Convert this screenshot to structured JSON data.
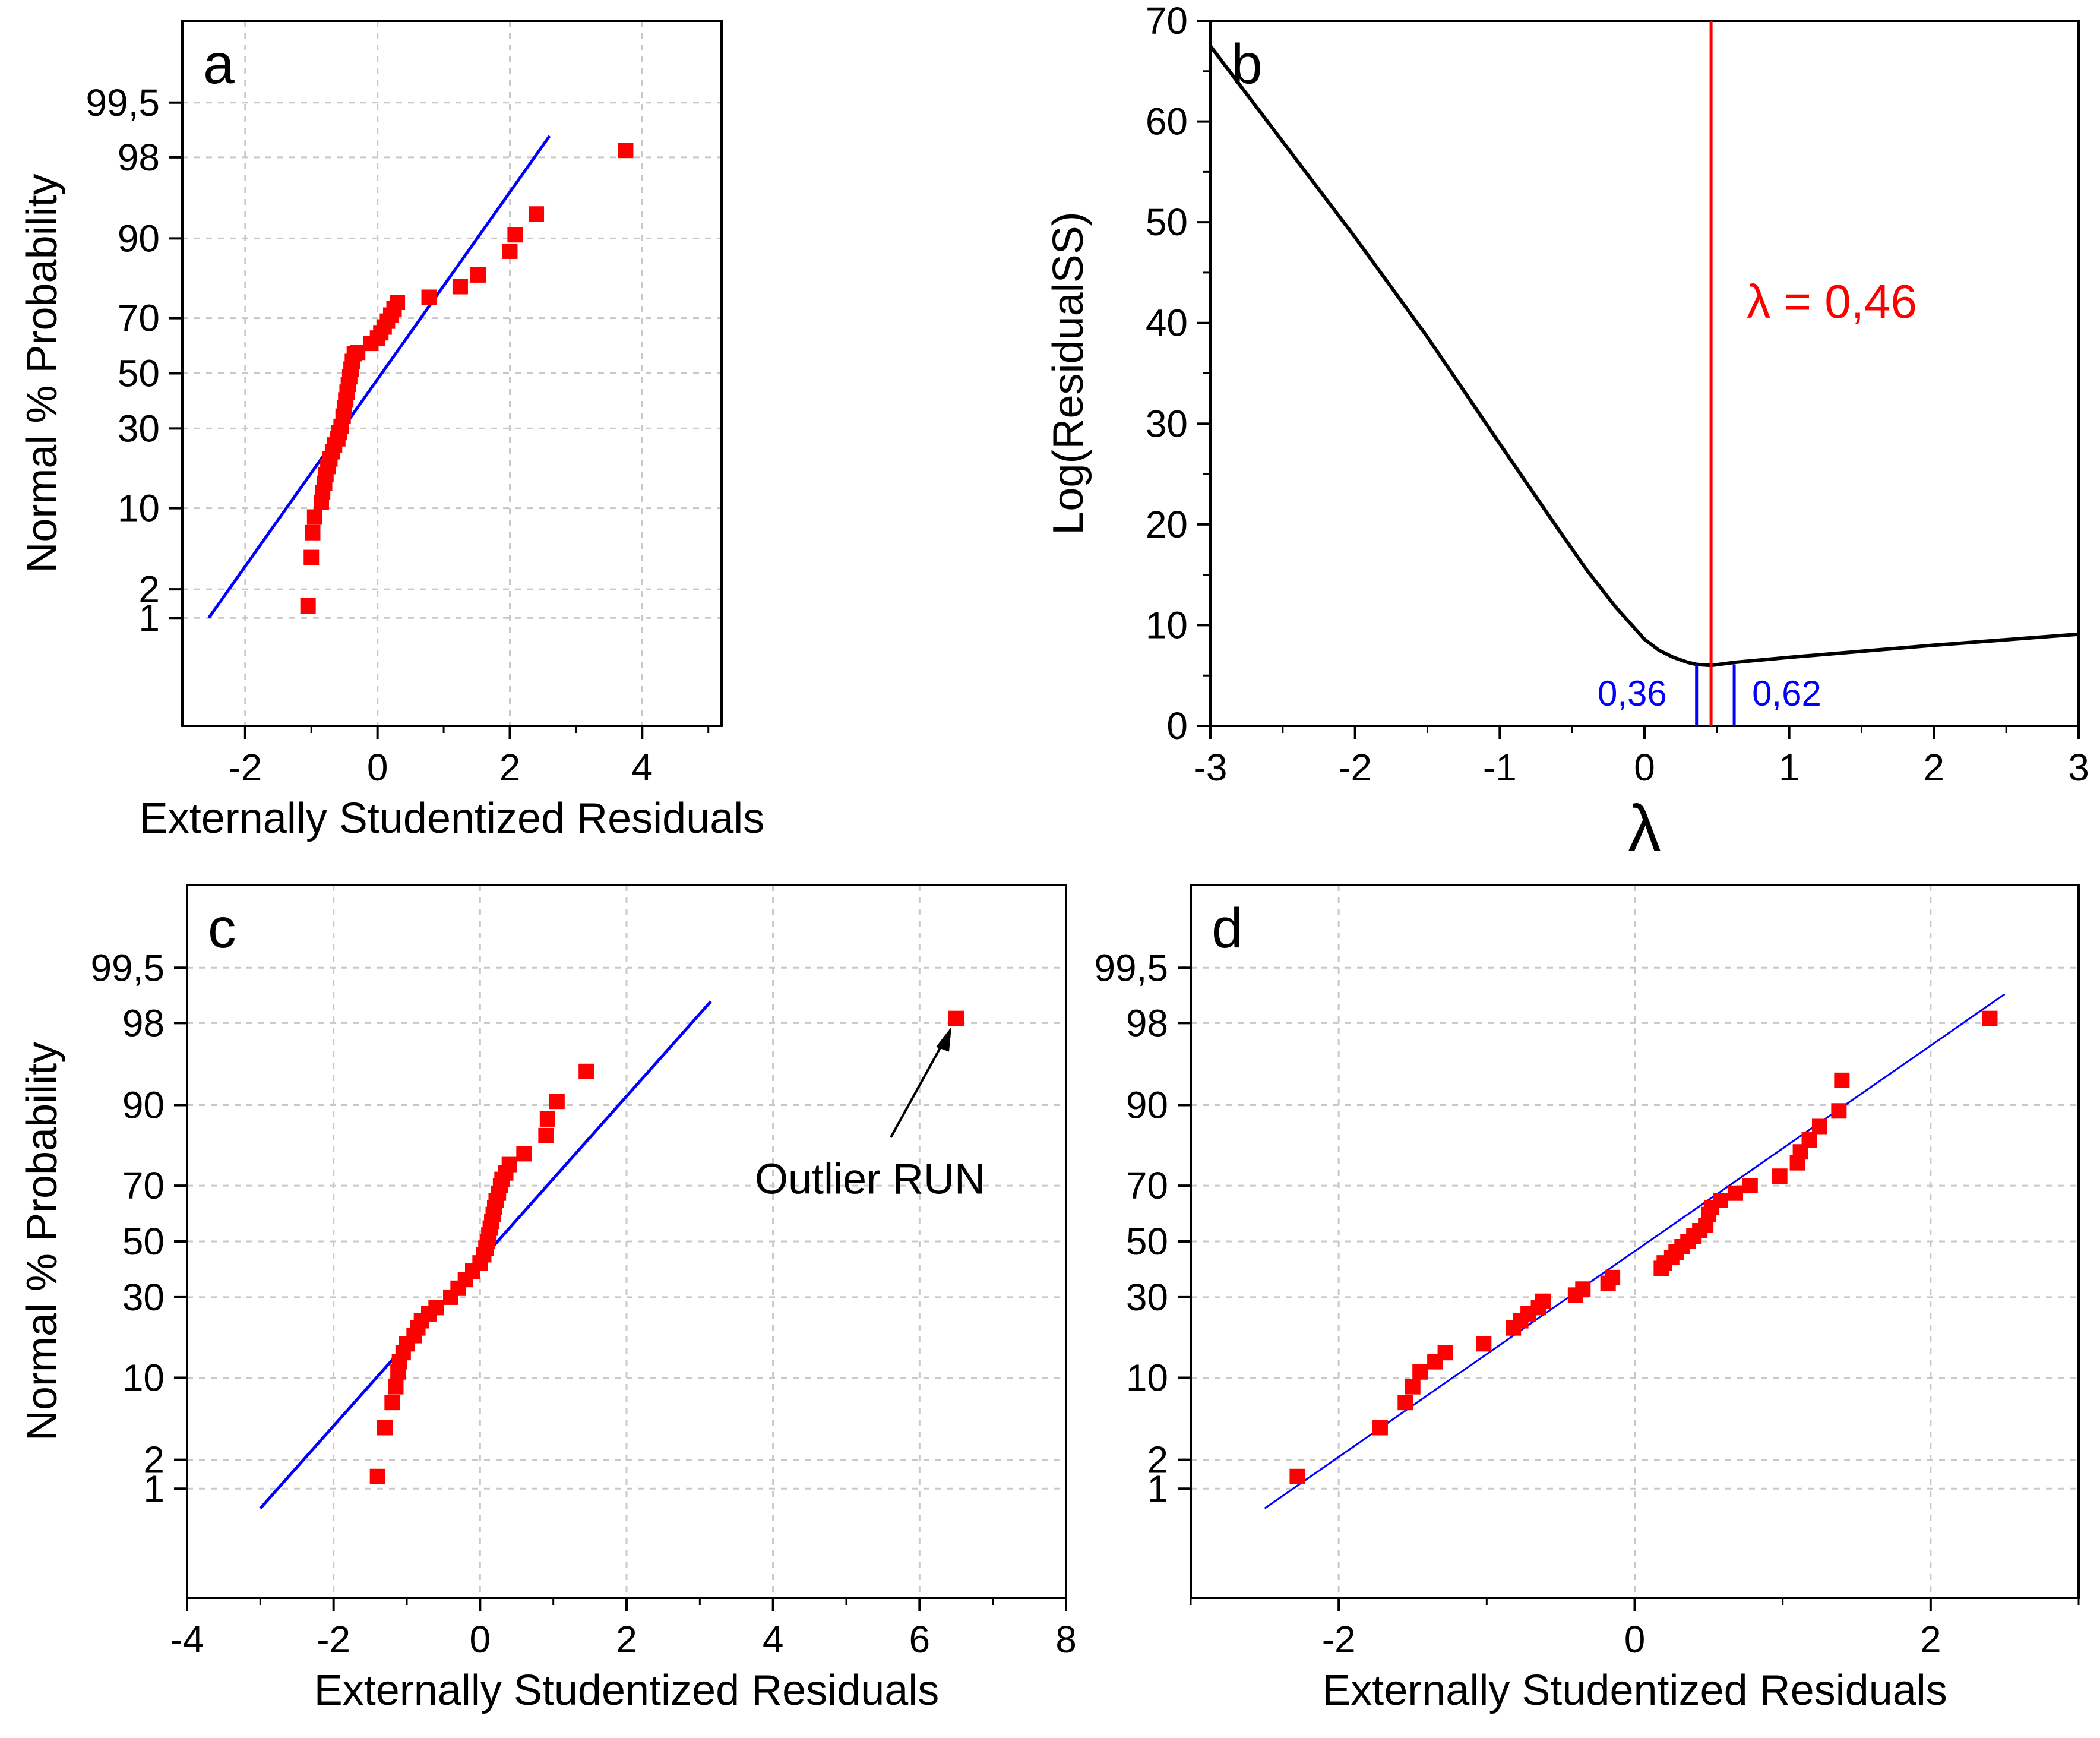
{
  "chart_data": [
    {
      "panel": "a",
      "type": "scatter",
      "panel_label": "a",
      "xlabel": "Externally Studentized Residuals",
      "ylabel": "Normal % Probability",
      "xlim": [
        -2.95,
        5.2
      ],
      "ylim": [
        -3.35,
        3.35
      ],
      "y_scale": "probit (normal probability)",
      "x_ticks": [
        "-2",
        "0",
        "2",
        "4"
      ],
      "x_tick_values": [
        -2,
        0,
        2,
        4
      ],
      "y_ticks": [
        "1",
        "2",
        "10",
        "30",
        "50",
        "70",
        "90",
        "98",
        "99,5"
      ],
      "y_tick_values": [
        1,
        2,
        10,
        30,
        50,
        70,
        90,
        98,
        99.5
      ],
      "grid": true,
      "fit_line": {
        "x": [
          -2.55,
          2.6
        ],
        "y_percent": [
          1.0,
          98.8
        ],
        "color": "#0000ff"
      },
      "series": [
        {
          "marker": "square",
          "color": "#ff0000",
          "x": [
            -1.05,
            -1.0,
            -0.98,
            -0.95,
            -0.85,
            -0.83,
            -0.8,
            -0.78,
            -0.75,
            -0.72,
            -0.68,
            -0.65,
            -0.6,
            -0.58,
            -0.55,
            -0.52,
            -0.5,
            -0.48,
            -0.46,
            -0.44,
            -0.42,
            -0.4,
            -0.38,
            -0.35,
            -0.3,
            -0.1,
            0.0,
            0.05,
            0.1,
            0.15,
            0.2,
            0.25,
            0.3,
            0.78,
            1.25,
            1.52,
            2.0,
            2.08,
            2.4,
            3.75
          ],
          "y_percent": [
            1.35,
            4.0,
            6.5,
            8.6,
            11.0,
            12.9,
            14.8,
            16.8,
            18.8,
            20.8,
            22.8,
            24.8,
            26.7,
            28.7,
            30.7,
            34.2,
            37.1,
            40.0,
            42.9,
            45.8,
            48.7,
            51.6,
            54.5,
            57.4,
            57.9,
            61.2,
            63.1,
            65.0,
            67.0,
            69.0,
            71.0,
            73.0,
            75.0,
            76.5,
            79.5,
            82.5,
            87.7,
            90.6,
            93.5,
            98.3
          ]
        }
      ]
    },
    {
      "panel": "b",
      "type": "line",
      "panel_label": "b",
      "xlabel": "λ",
      "ylabel": "Log(ResidualSS)",
      "xlim": [
        -3,
        3
      ],
      "ylim": [
        0,
        70
      ],
      "x_ticks": [
        "-3",
        "-2",
        "-1",
        "0",
        "1",
        "2",
        "3"
      ],
      "x_tick_values": [
        -3,
        -2,
        -1,
        0,
        1,
        2,
        3
      ],
      "y_ticks": [
        "0",
        "10",
        "20",
        "30",
        "40",
        "50",
        "60",
        "70"
      ],
      "y_tick_values": [
        0,
        10,
        20,
        30,
        40,
        50,
        60,
        70
      ],
      "grid": false,
      "series": [
        {
          "color": "#000000",
          "x": [
            -3.0,
            -2.5,
            -2.0,
            -1.5,
            -1.0,
            -0.8,
            -0.6,
            -0.4,
            -0.2,
            0.0,
            0.1,
            0.2,
            0.3,
            0.36,
            0.46,
            0.62,
            1.0,
            2.0,
            3.0
          ],
          "y": [
            67.5,
            58.0,
            48.5,
            38.6,
            28.0,
            23.8,
            19.6,
            15.5,
            11.8,
            8.6,
            7.5,
            6.8,
            6.3,
            6.1,
            6.0,
            6.3,
            6.8,
            8.0,
            9.1
          ]
        }
      ],
      "vline_red": {
        "x": 0.46,
        "label": "λ = 0,46",
        "color": "#ff0000"
      },
      "ci_marks": [
        {
          "x": 0.36,
          "label": "0,36",
          "color": "#0000ff"
        },
        {
          "x": 0.62,
          "label": "0,62",
          "color": "#0000ff"
        }
      ]
    },
    {
      "panel": "c",
      "type": "scatter",
      "panel_label": "c",
      "xlabel": "Externally Studentized Residuals",
      "ylabel": "Normal % Probability",
      "xlim": [
        -4,
        8
      ],
      "ylim": [
        -3.35,
        3.35
      ],
      "y_scale": "probit (normal probability)",
      "x_ticks": [
        "-4",
        "-2",
        "0",
        "2",
        "4",
        "6",
        "8"
      ],
      "x_tick_values": [
        -4,
        -2,
        0,
        2,
        4,
        6,
        8
      ],
      "y_ticks": [
        "1",
        "2",
        "10",
        "30",
        "50",
        "70",
        "90",
        "98",
        "99,5"
      ],
      "y_tick_values": [
        1,
        2,
        10,
        30,
        50,
        70,
        90,
        98,
        99.5
      ],
      "grid": true,
      "fit_line": {
        "x": [
          -3.0,
          3.15
        ],
        "y_percent": [
          0.6,
          98.8
        ],
        "color": "#0000ff"
      },
      "annotation": {
        "text": "Outlier RUN",
        "points_to": [
          6.5,
          98.2
        ]
      },
      "series": [
        {
          "marker": "square",
          "color": "#ff0000",
          "x": [
            -1.4,
            -1.3,
            -1.2,
            -1.15,
            -1.12,
            -1.1,
            -1.05,
            -1.0,
            -0.9,
            -0.85,
            -0.8,
            -0.7,
            -0.6,
            -0.4,
            -0.3,
            -0.2,
            -0.1,
            0.0,
            0.05,
            0.08,
            0.1,
            0.12,
            0.14,
            0.16,
            0.18,
            0.2,
            0.22,
            0.25,
            0.28,
            0.3,
            0.35,
            0.4,
            0.6,
            0.9,
            0.92,
            1.05,
            1.45,
            6.5
          ],
          "y_percent": [
            1.35,
            4.0,
            6.5,
            8.6,
            11.0,
            12.9,
            14.8,
            16.8,
            18.8,
            20.8,
            22.8,
            24.8,
            26.7,
            30.0,
            33.0,
            36.0,
            39.0,
            42.0,
            45.0,
            47.5,
            50.0,
            52.4,
            55.0,
            57.5,
            60.0,
            62.5,
            65.0,
            67.5,
            70.0,
            72.0,
            74.0,
            76.5,
            79.5,
            84.0,
            87.5,
            90.6,
            94.5,
            98.2
          ]
        }
      ]
    },
    {
      "panel": "d",
      "type": "scatter",
      "panel_label": "d",
      "xlabel": "Externally Studentized Residuals",
      "ylabel": "",
      "xlim": [
        -3.0,
        3.0
      ],
      "ylim": [
        -3.35,
        3.35
      ],
      "y_scale": "probit (normal probability)",
      "x_ticks": [
        "-2",
        "0",
        "2"
      ],
      "x_tick_values": [
        -2,
        0,
        2
      ],
      "y_ticks": [
        "1",
        "2",
        "10",
        "30",
        "50",
        "70",
        "90",
        "98",
        "99,5"
      ],
      "y_tick_values": [
        1,
        2,
        10,
        30,
        50,
        70,
        90,
        98,
        99.5
      ],
      "grid": true,
      "fit_line": {
        "x": [
          -2.5,
          2.5
        ],
        "y_percent": [
          0.6,
          99.0
        ],
        "color": "#0000ff"
      },
      "series": [
        {
          "marker": "square",
          "color": "#ff0000",
          "x": [
            -2.28,
            -1.72,
            -1.55,
            -1.5,
            -1.45,
            -1.35,
            -1.28,
            -1.02,
            -0.82,
            -0.77,
            -0.72,
            -0.65,
            -0.62,
            -0.4,
            -0.35,
            -0.18,
            -0.15,
            0.18,
            0.2,
            0.25,
            0.28,
            0.32,
            0.36,
            0.4,
            0.44,
            0.48,
            0.5,
            0.52,
            0.58,
            0.68,
            0.78,
            0.98,
            1.1,
            1.12,
            1.18,
            1.25,
            1.38,
            1.4,
            2.4
          ],
          "y_percent": [
            1.35,
            4.0,
            6.5,
            8.6,
            11.0,
            12.9,
            14.8,
            16.8,
            20.8,
            22.8,
            24.8,
            26.7,
            28.7,
            30.7,
            32.7,
            34.7,
            36.7,
            40.0,
            42.0,
            44.0,
            46.0,
            48.0,
            50.0,
            52.0,
            54.0,
            56.0,
            60.0,
            62.5,
            65.0,
            67.5,
            70.0,
            73.0,
            77.0,
            80.0,
            83.0,
            86.0,
            89.0,
            93.5,
            98.2
          ]
        }
      ]
    }
  ]
}
